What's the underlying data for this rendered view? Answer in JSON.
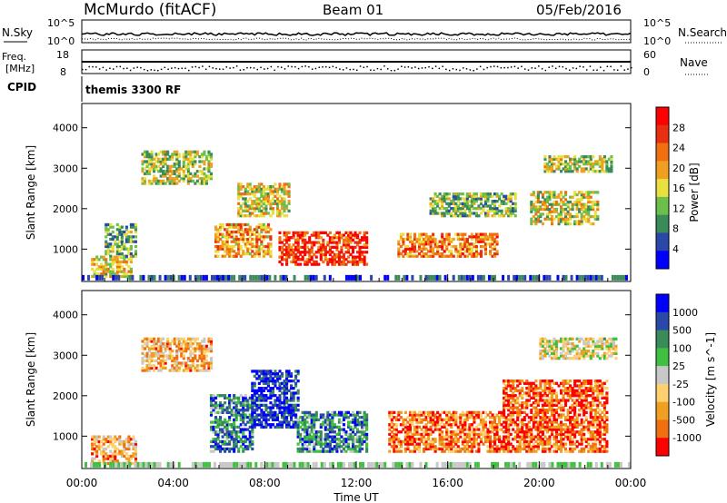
{
  "header": {
    "station": "McMurdo (fitACF)",
    "beam": "Beam 01",
    "date": "05/Feb/2016"
  },
  "noise_panel": {
    "left_label": "N.Sky",
    "right_label": "N.Search",
    "left_ticks": [
      "10^5",
      "10^0"
    ],
    "right_ticks": [
      "10^5",
      "10^0"
    ]
  },
  "freq_panel": {
    "left_label_1": "Freq.",
    "left_label_2": "[MHz]",
    "right_label": "Nave",
    "left_ticks": [
      "18",
      "8"
    ],
    "right_ticks": [
      "60",
      "0"
    ]
  },
  "cpid": {
    "label": "CPID",
    "value": "themis 3300 RF"
  },
  "colors": {
    "power": [
      "#0000ff",
      "#2a48a8",
      "#3a8a5a",
      "#6cbf4a",
      "#e8e040",
      "#f0a020",
      "#f07010",
      "#e83010",
      "#ff0000"
    ],
    "velocity": [
      "#ff0000",
      "#f07010",
      "#f0a020",
      "#ffd070",
      "#c8c8c8",
      "#40c040",
      "#3a8a5a",
      "#2a48a8",
      "#0000ff"
    ]
  },
  "chart_data": [
    {
      "type": "heatmap",
      "name": "power",
      "ylabel": "Slant Range [km]",
      "xlabel": "",
      "yticks": [
        "1000",
        "2000",
        "3000",
        "4000"
      ],
      "ylim": [
        200,
        4600
      ],
      "xlim": [
        0,
        24
      ],
      "colorbar": {
        "label": "Power [dB]",
        "ticks": [
          "4",
          "8",
          "12",
          "16",
          "20",
          "24",
          "28"
        ],
        "range": [
          0,
          32
        ]
      },
      "echo_regions": [
        {
          "t_start": 0.4,
          "t_end": 2.2,
          "r_start": 300,
          "r_end": 800,
          "level": 0.55
        },
        {
          "t_start": 1.0,
          "t_end": 2.4,
          "r_start": 800,
          "r_end": 1600,
          "level": 0.35
        },
        {
          "t_start": 2.6,
          "t_end": 5.6,
          "r_start": 2600,
          "r_end": 3400,
          "level": 0.45
        },
        {
          "t_start": 5.8,
          "t_end": 8.2,
          "r_start": 800,
          "r_end": 1600,
          "level": 0.65
        },
        {
          "t_start": 6.8,
          "t_end": 9.0,
          "r_start": 1800,
          "r_end": 2600,
          "level": 0.5
        },
        {
          "t_start": 8.6,
          "t_end": 12.4,
          "r_start": 600,
          "r_end": 1400,
          "level": 0.85
        },
        {
          "t_start": 13.8,
          "t_end": 18.2,
          "r_start": 800,
          "r_end": 1400,
          "level": 0.7
        },
        {
          "t_start": 15.2,
          "t_end": 19.0,
          "r_start": 1800,
          "r_end": 2400,
          "level": 0.4
        },
        {
          "t_start": 19.6,
          "t_end": 22.6,
          "r_start": 1600,
          "r_end": 2400,
          "level": 0.5
        },
        {
          "t_start": 20.2,
          "t_end": 23.2,
          "r_start": 2900,
          "r_end": 3300,
          "level": 0.45
        }
      ]
    },
    {
      "type": "heatmap",
      "name": "velocity",
      "ylabel": "Slant Range [km]",
      "xlabel": "Time UT",
      "xticks": [
        "00:00",
        "04:00",
        "08:00",
        "12:00",
        "16:00",
        "20:00",
        "00:00"
      ],
      "yticks": [
        "1000",
        "2000",
        "3000",
        "4000"
      ],
      "ylim": [
        200,
        4600
      ],
      "xlim": [
        0,
        24
      ],
      "colorbar": {
        "label": "Velocity [m s^-1]",
        "ticks": [
          "-1000",
          "-500",
          "-100",
          "-25",
          "25",
          "100",
          "500",
          "1000"
        ]
      },
      "echo_regions": [
        {
          "t_start": 0.4,
          "t_end": 2.4,
          "r_start": 300,
          "r_end": 1000,
          "level": 0.3
        },
        {
          "t_start": 2.6,
          "t_end": 5.6,
          "r_start": 2600,
          "r_end": 3400,
          "level": 0.3
        },
        {
          "t_start": 5.6,
          "t_end": 7.4,
          "r_start": 600,
          "r_end": 2000,
          "level": 0.75
        },
        {
          "t_start": 7.4,
          "t_end": 9.4,
          "r_start": 1200,
          "r_end": 2600,
          "level": 0.9
        },
        {
          "t_start": 9.4,
          "t_end": 12.4,
          "r_start": 600,
          "r_end": 1600,
          "level": 0.75
        },
        {
          "t_start": 13.4,
          "t_end": 18.4,
          "r_start": 600,
          "r_end": 1600,
          "level": 0.2
        },
        {
          "t_start": 18.4,
          "t_end": 23.0,
          "r_start": 600,
          "r_end": 2400,
          "level": 0.15
        },
        {
          "t_start": 20.0,
          "t_end": 23.4,
          "r_start": 2900,
          "r_end": 3400,
          "level": 0.45
        }
      ]
    }
  ]
}
